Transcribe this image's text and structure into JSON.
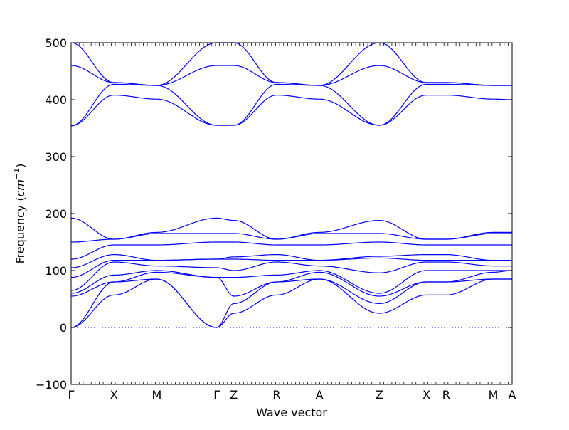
{
  "chart_data": {
    "type": "line",
    "title": "",
    "xlabel": "Wave vector",
    "ylabel": "Frequency (cm⁻¹)",
    "ylabel_parts": {
      "text": "Frequency (",
      "unit": "cm",
      "exponent": "−1",
      "close": ")"
    },
    "ylim": [
      -100,
      500
    ],
    "yticks": [
      -100,
      0,
      100,
      200,
      300,
      400,
      500
    ],
    "grid": false,
    "legend": "none",
    "colors": {
      "bands": "#0000ff",
      "zero_line": "#0000ff",
      "axes": "#000000"
    },
    "high_symmetry_points": [
      {
        "label": "Γ",
        "x": 0.0
      },
      {
        "label": "X",
        "x": 0.5
      },
      {
        "label": "M",
        "x": 1.0
      },
      {
        "label": "Γ",
        "x": 1.7
      },
      {
        "label": "Z",
        "x": 1.9
      },
      {
        "label": "R",
        "x": 2.4
      },
      {
        "label": "A",
        "x": 2.9
      },
      {
        "label": "Z",
        "x": 3.6
      },
      {
        "label": "X",
        "x": 4.15
      },
      {
        "label": "R",
        "x": 4.38
      },
      {
        "label": "M",
        "x": 4.93
      },
      {
        "label": "A",
        "x": 5.15
      }
    ],
    "xlim": [
      0,
      5.15
    ],
    "series": [
      {
        "x": [
          0,
          0.5,
          1.0,
          1.7,
          1.9,
          2.4,
          2.9,
          3.6,
          4.15,
          4.38,
          4.93,
          5.15
        ],
        "values": [
          0,
          57,
          85,
          0,
          25,
          57,
          85,
          25,
          57,
          57,
          85,
          85
        ]
      },
      {
        "x": [
          0,
          0.5,
          1.0,
          1.7,
          1.9,
          2.4,
          2.9,
          3.6,
          4.15,
          4.38,
          4.93,
          5.15
        ],
        "values": [
          0,
          80,
          85,
          0,
          42,
          80,
          85,
          42,
          80,
          80,
          85,
          85
        ]
      },
      {
        "x": [
          0,
          0.5,
          1.0,
          1.7,
          1.9,
          2.4,
          2.9,
          3.6,
          4.15,
          4.38,
          4.93,
          5.15
        ],
        "values": [
          55,
          80,
          97,
          88,
          55,
          80,
          97,
          55,
          80,
          80,
          97,
          100
        ]
      },
      {
        "x": [
          0,
          0.5,
          1.0,
          1.7,
          1.9,
          2.4,
          2.9,
          3.6,
          4.15,
          4.38,
          4.93,
          5.15
        ],
        "values": [
          60,
          92,
          100,
          88,
          88,
          92,
          100,
          60,
          100,
          100,
          100,
          100
        ]
      },
      {
        "x": [
          0,
          0.5,
          1.0,
          1.7,
          1.9,
          2.4,
          2.9,
          3.6,
          4.15,
          4.38,
          4.93,
          5.15
        ],
        "values": [
          65,
          115,
          108,
          105,
          100,
          115,
          108,
          96,
          115,
          115,
          108,
          108
        ]
      },
      {
        "x": [
          0,
          0.5,
          1.0,
          1.7,
          1.9,
          2.4,
          2.9,
          3.6,
          4.15,
          4.38,
          4.93,
          5.15
        ],
        "values": [
          88,
          118,
          118,
          120,
          120,
          118,
          118,
          122,
          118,
          118,
          118,
          118
        ]
      },
      {
        "x": [
          0,
          0.5,
          1.0,
          1.7,
          1.9,
          2.4,
          2.9,
          3.6,
          4.15,
          4.38,
          4.93,
          5.15
        ],
        "values": [
          105,
          128,
          118,
          120,
          124,
          128,
          118,
          125,
          128,
          128,
          118,
          118
        ]
      },
      {
        "x": [
          0,
          0.5,
          1.0,
          1.7,
          1.9,
          2.4,
          2.9,
          3.6,
          4.15,
          4.38,
          4.93,
          5.15
        ],
        "values": [
          120,
          145,
          145,
          150,
          150,
          145,
          145,
          150,
          145,
          145,
          145,
          145
        ]
      },
      {
        "x": [
          0,
          0.5,
          1.0,
          1.7,
          1.9,
          2.4,
          2.9,
          3.6,
          4.15,
          4.38,
          4.93,
          5.15
        ],
        "values": [
          150,
          155,
          165,
          165,
          165,
          155,
          165,
          165,
          155,
          155,
          165,
          165
        ]
      },
      {
        "x": [
          0,
          0.5,
          1.0,
          1.7,
          1.9,
          2.4,
          2.9,
          3.6,
          4.15,
          4.38,
          4.93,
          5.15
        ],
        "values": [
          192,
          155,
          167,
          192,
          188,
          155,
          167,
          188,
          155,
          155,
          167,
          167
        ]
      },
      {
        "x": [
          0,
          0.5,
          1.0,
          1.7,
          1.9,
          2.4,
          2.9,
          3.6,
          4.15,
          4.38,
          4.93,
          5.15
        ],
        "values": [
          354,
          408,
          401,
          355,
          355,
          408,
          401,
          355,
          408,
          408,
          401,
          400
        ]
      },
      {
        "x": [
          0,
          0.5,
          1.0,
          1.7,
          1.9,
          2.4,
          2.9,
          3.6,
          4.15,
          4.38,
          4.93,
          5.15
        ],
        "values": [
          354,
          427,
          425,
          355,
          355,
          427,
          425,
          355,
          427,
          427,
          425,
          425
        ]
      },
      {
        "x": [
          0,
          0.5,
          1.0,
          1.7,
          1.9,
          2.4,
          2.9,
          3.6,
          4.15,
          4.38,
          4.93,
          5.15
        ],
        "values": [
          460,
          430,
          425,
          460,
          460,
          430,
          425,
          460,
          430,
          430,
          425,
          425
        ]
      },
      {
        "x": [
          0,
          0.5,
          1.0,
          1.7,
          1.9,
          2.4,
          2.9,
          3.6,
          4.15,
          4.38,
          4.93,
          5.15
        ],
        "values": [
          500,
          430,
          425,
          500,
          500,
          430,
          425,
          500,
          430,
          430,
          425,
          425
        ]
      }
    ]
  }
}
